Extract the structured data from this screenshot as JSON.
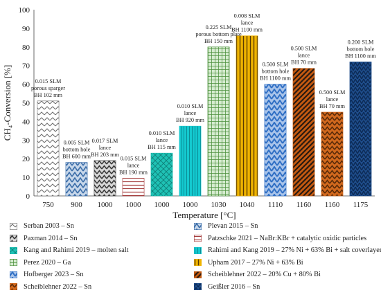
{
  "chart_data": {
    "type": "bar",
    "xlabel": "Temperature [°C]",
    "ylabel": "CH₄-Conversion [%]",
    "ylim": [
      0,
      100
    ],
    "yticks": [
      0,
      10,
      20,
      30,
      40,
      50,
      60,
      70,
      80,
      90,
      100
    ],
    "grid": false,
    "legend_position": "bottom",
    "categories": [
      "750",
      "900",
      "1000",
      "1000",
      "1000",
      "1000",
      "1030",
      "1040",
      "1110",
      "1160",
      "1160",
      "1175"
    ],
    "series": [
      {
        "name": "Serban 2003 – Sn",
        "color": "#6b6b6b",
        "pattern": "chevron-light",
        "bar_index": 0,
        "value": 51,
        "annotation": [
          "0.015 SLM",
          "porous sparger",
          "BH 102 mm"
        ]
      },
      {
        "name": "Plevan 2015 – Sn",
        "color": "#3c6ea9",
        "pattern": "herringbone-blue",
        "bar_index": 1,
        "value": 18,
        "annotation": [
          "0.005 SLM",
          "bottom hole",
          "BH 600 mm"
        ]
      },
      {
        "name": "Paxman 2014 – Sn",
        "color": "#3a3a3a",
        "pattern": "chevron-dark",
        "bar_index": 2,
        "value": 19,
        "annotation": [
          "0.017 SLM",
          "lance",
          "BH 203 mm"
        ]
      },
      {
        "name": "Patzschke 2021 – NaBr:KBr + catalytic oxidic particles",
        "color": "#a33a3a",
        "pattern": "horizontal-red",
        "bar_index": 3,
        "value": 9.5,
        "annotation": [
          "0.015 SLM",
          "lance",
          "BH 190 mm"
        ]
      },
      {
        "name": "Kang and Rahimi 2019 – molten salt",
        "color": "#1fc2b5",
        "pattern": "crosshatch-teal",
        "bar_index": 4,
        "value": 23,
        "annotation": [
          "0.010 SLM",
          "lance",
          "BH 115 mm"
        ]
      },
      {
        "name": "Rahimi and Kang 2019 – 27% Ni + 63% Bi + salt coverlayer",
        "color": "#14c9cf",
        "pattern": "vertical-cyan",
        "bar_index": 5,
        "value": 37.5,
        "annotation": [
          "0.010 SLM",
          "lance",
          "BH 920 mm"
        ]
      },
      {
        "name": "Perez 2020 – Ga",
        "color": "#4a8f3a",
        "pattern": "grid-green",
        "bar_index": 6,
        "value": 80,
        "annotation": [
          "0.225 SLM",
          "porous bottom plate",
          "BH 150 mm"
        ]
      },
      {
        "name": "Upham 2017 – 27% Ni + 63% Bi",
        "color": "#f0b400",
        "pattern": "vertical-gold",
        "bar_index": 7,
        "value": 86,
        "annotation": [
          "0.008 SLM",
          "lance",
          "BH 1100 mm"
        ]
      },
      {
        "name": "Hofberger 2023 – Sn",
        "color": "#2f6fc4",
        "pattern": "herringbone-bold-blue",
        "bar_index": 8,
        "value": 60,
        "annotation": [
          "0.500 SLM",
          "bottom hole",
          "BH 1100 mm"
        ]
      },
      {
        "name": "Scheiblehner 2022 – 20% Cu + 80% Bi",
        "color": "#c55a11",
        "pattern": "diagonal-orange",
        "bar_index": 9,
        "value": 68.5,
        "annotation": [
          "0.500 SLM",
          "lance",
          "BH 70 mm"
        ]
      },
      {
        "name": "Scheiblehner 2022 – Sn",
        "color": "#d2691e",
        "pattern": "chevron-orange",
        "bar_index": 10,
        "value": 45,
        "annotation": [
          "0.500 SLM",
          "lance",
          "BH 70 mm"
        ]
      },
      {
        "name": "Geißler 2016 – Sn",
        "color": "#1f4e8c",
        "pattern": "scale-navy",
        "bar_index": 11,
        "value": 72,
        "annotation": [
          "0.200 SLM",
          "bottom hole",
          "BH 1100 mm"
        ]
      }
    ]
  }
}
